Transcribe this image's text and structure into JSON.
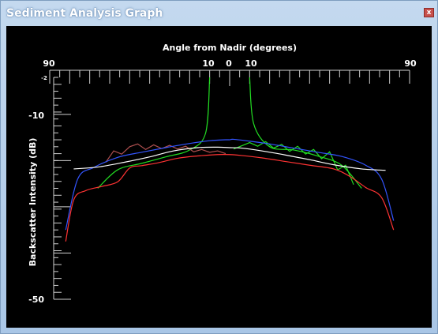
{
  "window": {
    "title": "Sediment Analysis Graph",
    "close_icon": "close-icon",
    "close_glyph": "x"
  },
  "colors": {
    "background": "#000000",
    "green": "#22dd22",
    "red": "#ff3333",
    "blue": "#3355ff",
    "white": "#ffffff",
    "brown": "#b05050",
    "purple": "#7040c0"
  },
  "chart_data": {
    "type": "line",
    "title": "",
    "xlabel": "Angle from Nadir (degrees)",
    "ylabel": "Backscatter Intensity (dB)",
    "x_tick_labels_text": [
      "90",
      "10",
      "0",
      "10",
      "90"
    ],
    "y_tick_labels_text": [
      "-2",
      "-10",
      "-50"
    ],
    "x_ticks": [
      -90,
      -10,
      0,
      10,
      90
    ],
    "xlim": [
      -90,
      90
    ],
    "y_ticks": [
      -2,
      -10,
      -50
    ],
    "ylim": [
      -2,
      -50
    ],
    "grid": false,
    "series": [
      {
        "color": "#22dd22",
        "style": "smooth",
        "x": [
          -66,
          -56,
          -44,
          -32,
          -20,
          -12,
          -10
        ],
        "y": [
          -26,
          -22,
          -20.6,
          -19.2,
          -17.7,
          -14,
          -2
        ]
      },
      {
        "color": "#22dd22",
        "style": "smooth",
        "x": [
          10,
          12,
          20,
          32,
          44,
          56,
          66
        ],
        "y": [
          -2,
          -12,
          -17,
          -17.7,
          -19,
          -21,
          -26
        ]
      },
      {
        "color": "#22dd22",
        "style": "noisy",
        "x": [
          2,
          6,
          10,
          14,
          18,
          22,
          26,
          30,
          34,
          38,
          42,
          46,
          50,
          54,
          58,
          62
        ],
        "y": [
          -17.5,
          -16.8,
          -16.1,
          -16.9,
          -15.9,
          -17.3,
          -16.5,
          -18.0,
          -16.9,
          -18.6,
          -17.6,
          -19.6,
          -18.1,
          -22.0,
          -21.0,
          -25.2
        ]
      },
      {
        "color": "#b05050",
        "style": "noisy",
        "x": [
          -62,
          -58,
          -54,
          -50,
          -46,
          -42,
          -38,
          -34,
          -30,
          -26,
          -22,
          -18,
          -14,
          -10,
          -6,
          -2
        ],
        "y": [
          -20.4,
          -17.9,
          -18.6,
          -17.0,
          -16.4,
          -17.6,
          -16.6,
          -17.4,
          -16.7,
          -17.5,
          -16.9,
          -18.1,
          -17.6,
          -18.2,
          -17.9,
          -18.5
        ]
      },
      {
        "color": "#3355ff",
        "style": "smooth",
        "x": [
          -82,
          -76,
          -68,
          -56,
          -44,
          -32,
          -20,
          -10,
          -2,
          0,
          2,
          10,
          20,
          32,
          44,
          56,
          68,
          76,
          82
        ],
        "y": [
          -35,
          -24,
          -21.5,
          -19.3,
          -18.2,
          -17.2,
          -16.3,
          -15.7,
          -15.5,
          -15.5,
          -15.4,
          -15.8,
          -16.4,
          -17.3,
          -18.2,
          -19.1,
          -21,
          -24,
          -33
        ]
      },
      {
        "color": "#ffffff",
        "style": "smooth",
        "x": [
          -78,
          -66,
          -52,
          -40,
          -28,
          -16,
          -6,
          0,
          6,
          16,
          28,
          40,
          52,
          66,
          78
        ],
        "y": [
          -21.8,
          -21.4,
          -20.3,
          -19.2,
          -17.9,
          -17.2,
          -17.1,
          -17.2,
          -17.3,
          -17.9,
          -18.8,
          -19.8,
          -20.9,
          -21.8,
          -22.1
        ]
      },
      {
        "color": "#ff3333",
        "style": "smooth",
        "x": [
          -82,
          -78,
          -72,
          -64,
          -56,
          -50,
          -44,
          -36,
          -26,
          -16,
          -6,
          0,
          6,
          16,
          28,
          40,
          52,
          60,
          68,
          76,
          82
        ],
        "y": [
          -37.5,
          -28.5,
          -26.5,
          -25.6,
          -24.6,
          -21.6,
          -21.1,
          -20.5,
          -19.5,
          -19.0,
          -18.7,
          -18.7,
          -18.9,
          -19.4,
          -20.2,
          -21.0,
          -21.8,
          -23.4,
          -25.8,
          -28,
          -35
        ]
      }
    ]
  }
}
